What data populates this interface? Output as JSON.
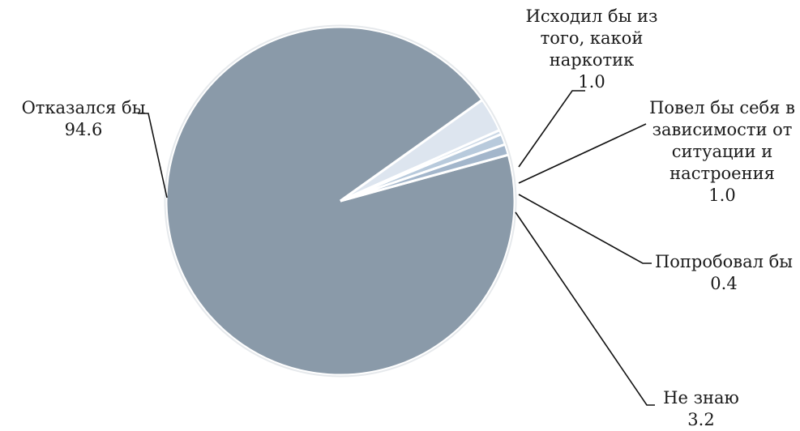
{
  "chart_data": {
    "type": "pie",
    "title": "",
    "slices": [
      {
        "label": "Отказался бы",
        "label_lines": [
          "Отказался бы"
        ],
        "value": 94.6,
        "value_text": "94.6",
        "color": "#8a9aa9"
      },
      {
        "label": "Исходил бы из того, какой наркотик",
        "label_lines": [
          "Исходил бы из",
          "того, какой",
          "наркотик"
        ],
        "value": 1.0,
        "value_text": "1.0",
        "color": "#a3b6cb"
      },
      {
        "label": "Повел бы себя в зависимости от ситуации и настроения",
        "label_lines": [
          "Повел бы себя в",
          "зависимости от",
          "ситуации и",
          "настроения"
        ],
        "value": 1.0,
        "value_text": "1.0",
        "color": "#b8cadc"
      },
      {
        "label": "Попробовал бы",
        "label_lines": [
          "Попробовал бы"
        ],
        "value": 0.4,
        "value_text": "0.4",
        "color": "#cbd8e6"
      },
      {
        "label": "Не знаю",
        "label_lines": [
          "Не знаю"
        ],
        "value": 3.2,
        "value_text": "3.2",
        "color": "#dde5ef"
      }
    ],
    "legend": "none",
    "data_labels": "outside-with-leader-lines"
  }
}
